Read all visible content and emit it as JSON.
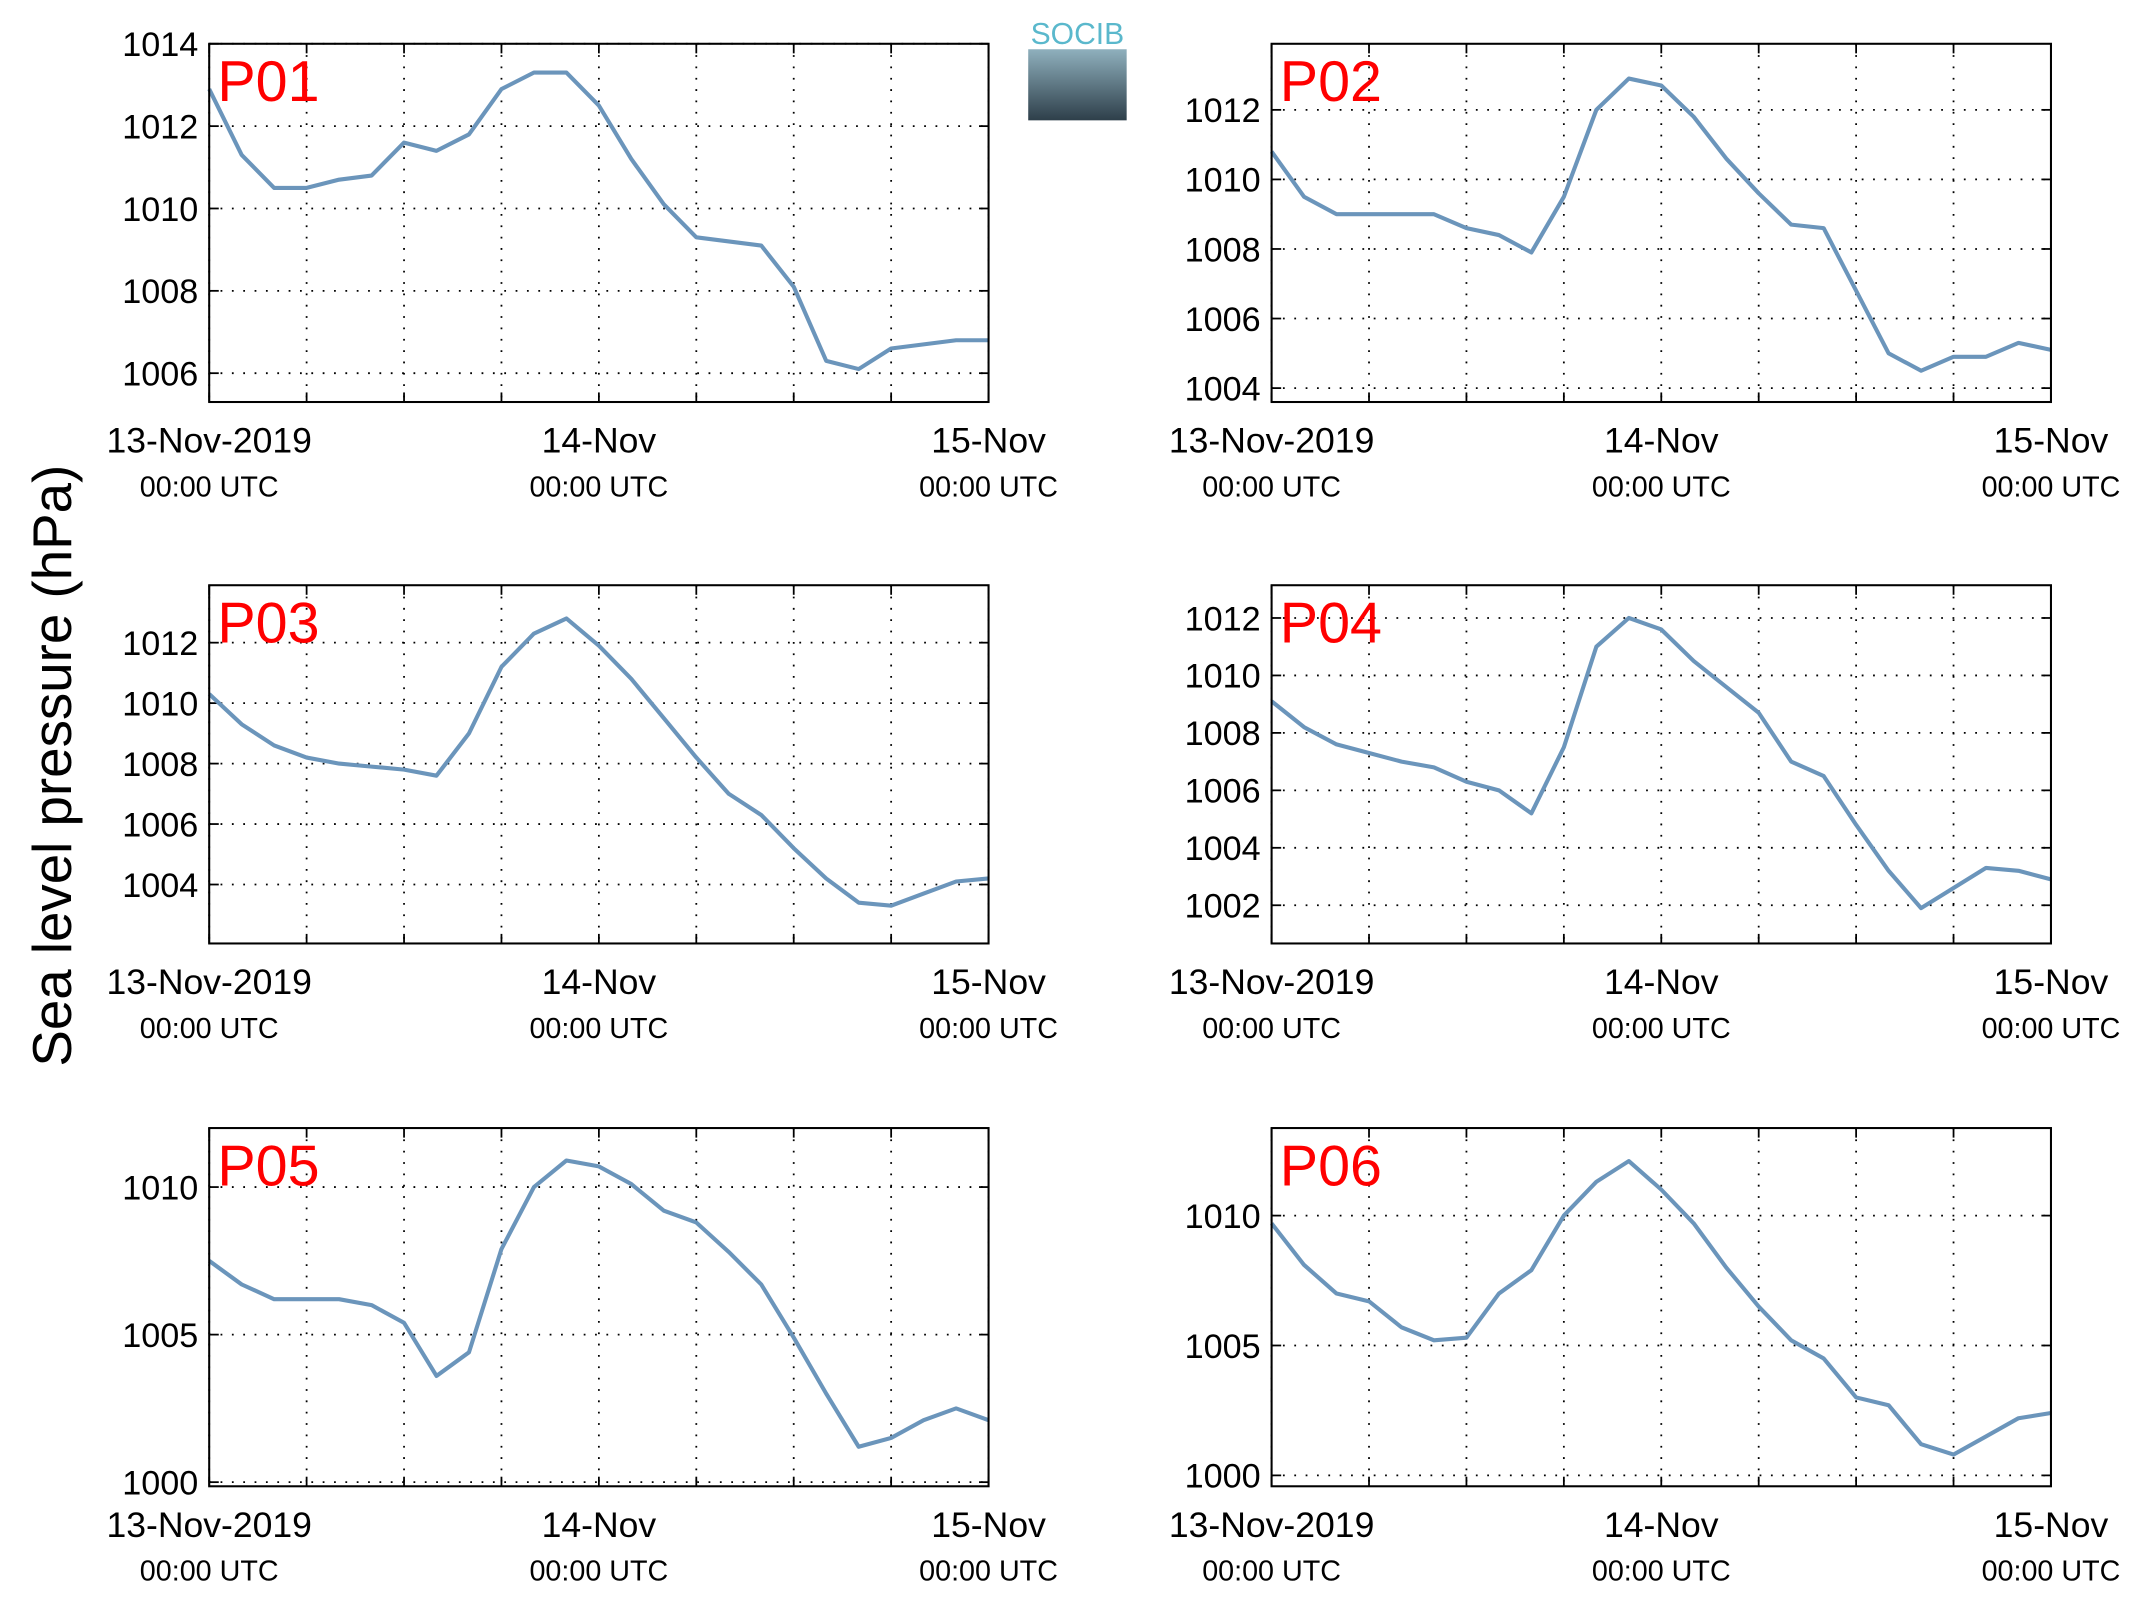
{
  "ylabel": "Sea level pressure (hPa)",
  "logo": "SOCIB",
  "chart_data": [
    {
      "type": "line",
      "title": "P01",
      "color": "#6b95bb",
      "grid": true,
      "x": [
        "2019-11-13T00:00",
        "2019-11-13T02:00",
        "2019-11-13T04:00",
        "2019-11-13T06:00",
        "2019-11-13T08:00",
        "2019-11-13T10:00",
        "2019-11-13T12:00",
        "2019-11-13T14:00",
        "2019-11-13T16:00",
        "2019-11-13T18:00",
        "2019-11-13T20:00",
        "2019-11-13T22:00",
        "2019-11-14T00:00",
        "2019-11-14T02:00",
        "2019-11-14T04:00",
        "2019-11-14T06:00",
        "2019-11-14T08:00",
        "2019-11-14T10:00",
        "2019-11-14T12:00",
        "2019-11-14T14:00",
        "2019-11-14T16:00",
        "2019-11-14T18:00",
        "2019-11-14T20:00",
        "2019-11-14T22:00",
        "2019-11-15T00:00"
      ],
      "values": [
        1012.9,
        1011.3,
        1010.5,
        1010.5,
        1010.7,
        1010.8,
        1011.6,
        1011.4,
        1011.8,
        1012.9,
        1013.3,
        1013.3,
        1012.5,
        1011.2,
        1010.1,
        1009.3,
        1009.2,
        1009.1,
        1008.1,
        1006.3,
        1006.1,
        1006.6,
        1006.7,
        1006.8,
        1006.8
      ],
      "xlim": [
        "2019-11-13T00:00",
        "2019-11-15T00:00"
      ],
      "xticks": [
        {
          "value": "2019-11-13T00:00",
          "label": [
            "13-Nov-2019",
            "00:00 UTC"
          ]
        },
        {
          "value": "2019-11-13T06:00",
          "label": null
        },
        {
          "value": "2019-11-13T12:00",
          "label": null
        },
        {
          "value": "2019-11-13T18:00",
          "label": null
        },
        {
          "value": "2019-11-14T00:00",
          "label": [
            "14-Nov",
            "00:00 UTC"
          ]
        },
        {
          "value": "2019-11-14T06:00",
          "label": null
        },
        {
          "value": "2019-11-14T12:00",
          "label": null
        },
        {
          "value": "2019-11-14T18:00",
          "label": null
        },
        {
          "value": "2019-11-15T00:00",
          "label": [
            "15-Nov",
            "00:00 UTC"
          ]
        }
      ],
      "ylim": [
        1005.3,
        1014
      ],
      "yticks": [
        1006,
        1008,
        1010,
        1012,
        1014
      ]
    },
    {
      "type": "line",
      "title": "P02",
      "color": "#6b95bb",
      "grid": true,
      "x": [
        "2019-11-13T00:00",
        "2019-11-13T02:00",
        "2019-11-13T04:00",
        "2019-11-13T06:00",
        "2019-11-13T08:00",
        "2019-11-13T10:00",
        "2019-11-13T12:00",
        "2019-11-13T14:00",
        "2019-11-13T16:00",
        "2019-11-13T18:00",
        "2019-11-13T20:00",
        "2019-11-13T22:00",
        "2019-11-14T00:00",
        "2019-11-14T02:00",
        "2019-11-14T04:00",
        "2019-11-14T06:00",
        "2019-11-14T08:00",
        "2019-11-14T10:00",
        "2019-11-14T12:00",
        "2019-11-14T14:00",
        "2019-11-14T16:00",
        "2019-11-14T18:00",
        "2019-11-14T20:00",
        "2019-11-14T22:00",
        "2019-11-15T00:00"
      ],
      "values": [
        1010.8,
        1009.5,
        1009.0,
        1009.0,
        1009.0,
        1009.0,
        1008.6,
        1008.4,
        1007.9,
        1009.5,
        1012.0,
        1012.9,
        1012.7,
        1011.8,
        1010.6,
        1009.6,
        1008.7,
        1008.6,
        1006.8,
        1005.0,
        1004.5,
        1004.9,
        1004.9,
        1005.3,
        1005.1
      ],
      "xlim": [
        "2019-11-13T00:00",
        "2019-11-15T00:00"
      ],
      "xticks": [
        {
          "value": "2019-11-13T00:00",
          "label": [
            "13-Nov-2019",
            "00:00 UTC"
          ]
        },
        {
          "value": "2019-11-13T06:00",
          "label": null
        },
        {
          "value": "2019-11-13T12:00",
          "label": null
        },
        {
          "value": "2019-11-13T18:00",
          "label": null
        },
        {
          "value": "2019-11-14T00:00",
          "label": [
            "14-Nov",
            "00:00 UTC"
          ]
        },
        {
          "value": "2019-11-14T06:00",
          "label": null
        },
        {
          "value": "2019-11-14T12:00",
          "label": null
        },
        {
          "value": "2019-11-14T18:00",
          "label": null
        },
        {
          "value": "2019-11-15T00:00",
          "label": [
            "15-Nov",
            "00:00 UTC"
          ]
        }
      ],
      "ylim": [
        1003.6,
        1013.9
      ],
      "yticks": [
        1004,
        1006,
        1008,
        1010,
        1012
      ]
    },
    {
      "type": "line",
      "title": "P03",
      "color": "#6b95bb",
      "grid": true,
      "x": [
        "2019-11-13T00:00",
        "2019-11-13T02:00",
        "2019-11-13T04:00",
        "2019-11-13T06:00",
        "2019-11-13T08:00",
        "2019-11-13T10:00",
        "2019-11-13T12:00",
        "2019-11-13T14:00",
        "2019-11-13T16:00",
        "2019-11-13T18:00",
        "2019-11-13T20:00",
        "2019-11-13T22:00",
        "2019-11-14T00:00",
        "2019-11-14T02:00",
        "2019-11-14T04:00",
        "2019-11-14T06:00",
        "2019-11-14T08:00",
        "2019-11-14T10:00",
        "2019-11-14T12:00",
        "2019-11-14T14:00",
        "2019-11-14T16:00",
        "2019-11-14T18:00",
        "2019-11-14T20:00",
        "2019-11-14T22:00",
        "2019-11-15T00:00"
      ],
      "values": [
        1010.3,
        1009.3,
        1008.6,
        1008.2,
        1008.0,
        1007.9,
        1007.8,
        1007.6,
        1009.0,
        1011.2,
        1012.3,
        1012.8,
        1011.9,
        1010.8,
        1009.5,
        1008.2,
        1007.0,
        1006.3,
        1005.2,
        1004.2,
        1003.4,
        1003.3,
        1003.7,
        1004.1,
        1004.2
      ],
      "xlim": [
        "2019-11-13T00:00",
        "2019-11-15T00:00"
      ],
      "xticks": [
        {
          "value": "2019-11-13T00:00",
          "label": [
            "13-Nov-2019",
            "00:00 UTC"
          ]
        },
        {
          "value": "2019-11-13T06:00",
          "label": null
        },
        {
          "value": "2019-11-13T12:00",
          "label": null
        },
        {
          "value": "2019-11-13T18:00",
          "label": null
        },
        {
          "value": "2019-11-14T00:00",
          "label": [
            "14-Nov",
            "00:00 UTC"
          ]
        },
        {
          "value": "2019-11-14T06:00",
          "label": null
        },
        {
          "value": "2019-11-14T12:00",
          "label": null
        },
        {
          "value": "2019-11-14T18:00",
          "label": null
        },
        {
          "value": "2019-11-15T00:00",
          "label": [
            "15-Nov",
            "00:00 UTC"
          ]
        }
      ],
      "ylim": [
        1002.05,
        1013.9
      ],
      "yticks": [
        1004,
        1006,
        1008,
        1010,
        1012
      ]
    },
    {
      "type": "line",
      "title": "P04",
      "color": "#6b95bb",
      "grid": true,
      "x": [
        "2019-11-13T00:00",
        "2019-11-13T02:00",
        "2019-11-13T04:00",
        "2019-11-13T06:00",
        "2019-11-13T08:00",
        "2019-11-13T10:00",
        "2019-11-13T12:00",
        "2019-11-13T14:00",
        "2019-11-13T16:00",
        "2019-11-13T18:00",
        "2019-11-13T20:00",
        "2019-11-13T22:00",
        "2019-11-14T00:00",
        "2019-11-14T02:00",
        "2019-11-14T04:00",
        "2019-11-14T06:00",
        "2019-11-14T08:00",
        "2019-11-14T10:00",
        "2019-11-14T12:00",
        "2019-11-14T14:00",
        "2019-11-14T16:00",
        "2019-11-14T18:00",
        "2019-11-14T20:00",
        "2019-11-14T22:00",
        "2019-11-15T00:00"
      ],
      "values": [
        1009.1,
        1008.2,
        1007.6,
        1007.3,
        1007.0,
        1006.8,
        1006.3,
        1006.0,
        1005.2,
        1007.5,
        1011.0,
        1012.0,
        1011.6,
        1010.5,
        1009.6,
        1008.7,
        1007.0,
        1006.5,
        1004.8,
        1003.2,
        1001.9,
        1002.6,
        1003.3,
        1003.2,
        1002.9
      ],
      "xlim": [
        "2019-11-13T00:00",
        "2019-11-15T00:00"
      ],
      "xticks": [
        {
          "value": "2019-11-13T00:00",
          "label": [
            "13-Nov-2019",
            "00:00 UTC"
          ]
        },
        {
          "value": "2019-11-13T06:00",
          "label": null
        },
        {
          "value": "2019-11-13T12:00",
          "label": null
        },
        {
          "value": "2019-11-13T18:00",
          "label": null
        },
        {
          "value": "2019-11-14T00:00",
          "label": [
            "14-Nov",
            "00:00 UTC"
          ]
        },
        {
          "value": "2019-11-14T06:00",
          "label": null
        },
        {
          "value": "2019-11-14T12:00",
          "label": null
        },
        {
          "value": "2019-11-14T18:00",
          "label": null
        },
        {
          "value": "2019-11-15T00:00",
          "label": [
            "15-Nov",
            "00:00 UTC"
          ]
        }
      ],
      "ylim": [
        1000.67,
        1013.14
      ],
      "yticks": [
        1002,
        1004,
        1006,
        1008,
        1010,
        1012
      ]
    },
    {
      "type": "line",
      "title": "P05",
      "color": "#6b95bb",
      "grid": true,
      "x": [
        "2019-11-13T00:00",
        "2019-11-13T02:00",
        "2019-11-13T04:00",
        "2019-11-13T06:00",
        "2019-11-13T08:00",
        "2019-11-13T10:00",
        "2019-11-13T12:00",
        "2019-11-13T14:00",
        "2019-11-13T16:00",
        "2019-11-13T18:00",
        "2019-11-13T20:00",
        "2019-11-13T22:00",
        "2019-11-14T00:00",
        "2019-11-14T02:00",
        "2019-11-14T04:00",
        "2019-11-14T06:00",
        "2019-11-14T08:00",
        "2019-11-14T10:00",
        "2019-11-14T12:00",
        "2019-11-14T14:00",
        "2019-11-14T16:00",
        "2019-11-14T18:00",
        "2019-11-14T20:00",
        "2019-11-14T22:00",
        "2019-11-15T00:00"
      ],
      "values": [
        1007.5,
        1006.7,
        1006.2,
        1006.2,
        1006.2,
        1006.0,
        1005.4,
        1003.6,
        1004.4,
        1007.9,
        1010.0,
        1010.9,
        1010.7,
        1010.1,
        1009.2,
        1008.8,
        1007.8,
        1006.7,
        1004.9,
        1003.0,
        1001.2,
        1001.5,
        1002.1,
        1002.5,
        1002.1
      ],
      "xlim": [
        "2019-11-13T00:00",
        "2019-11-15T00:00"
      ],
      "xticks": [
        {
          "value": "2019-11-13T00:00",
          "label": [
            "13-Nov-2019",
            "00:00 UTC"
          ]
        },
        {
          "value": "2019-11-13T06:00",
          "label": null
        },
        {
          "value": "2019-11-13T12:00",
          "label": null
        },
        {
          "value": "2019-11-13T18:00",
          "label": null
        },
        {
          "value": "2019-11-14T00:00",
          "label": [
            "14-Nov",
            "00:00 UTC"
          ]
        },
        {
          "value": "2019-11-14T06:00",
          "label": null
        },
        {
          "value": "2019-11-14T12:00",
          "label": null
        },
        {
          "value": "2019-11-14T18:00",
          "label": null
        },
        {
          "value": "2019-11-15T00:00",
          "label": [
            "15-Nov",
            "00:00 UTC"
          ]
        }
      ],
      "ylim": [
        999.86,
        1012
      ],
      "yticks": [
        1000,
        1005,
        1010
      ]
    },
    {
      "type": "line",
      "title": "P06",
      "color": "#6b95bb",
      "grid": true,
      "x": [
        "2019-11-13T00:00",
        "2019-11-13T02:00",
        "2019-11-13T04:00",
        "2019-11-13T06:00",
        "2019-11-13T08:00",
        "2019-11-13T10:00",
        "2019-11-13T12:00",
        "2019-11-13T14:00",
        "2019-11-13T16:00",
        "2019-11-13T18:00",
        "2019-11-13T20:00",
        "2019-11-13T22:00",
        "2019-11-14T00:00",
        "2019-11-14T02:00",
        "2019-11-14T04:00",
        "2019-11-14T06:00",
        "2019-11-14T08:00",
        "2019-11-14T10:00",
        "2019-11-14T12:00",
        "2019-11-14T14:00",
        "2019-11-14T16:00",
        "2019-11-14T18:00",
        "2019-11-14T20:00",
        "2019-11-14T22:00",
        "2019-11-15T00:00"
      ],
      "values": [
        1009.7,
        1008.1,
        1007.0,
        1006.7,
        1005.7,
        1005.2,
        1005.3,
        1007.0,
        1007.9,
        1010.0,
        1011.3,
        1012.1,
        1011.0,
        1009.7,
        1008.0,
        1006.5,
        1005.2,
        1004.5,
        1003.0,
        1002.7,
        1001.2,
        1000.8,
        1001.5,
        1002.2,
        1002.4
      ],
      "xlim": [
        "2019-11-13T00:00",
        "2019-11-15T00:00"
      ],
      "xticks": [
        {
          "value": "2019-11-13T00:00",
          "label": [
            "13-Nov-2019",
            "00:00 UTC"
          ]
        },
        {
          "value": "2019-11-13T06:00",
          "label": null
        },
        {
          "value": "2019-11-13T12:00",
          "label": null
        },
        {
          "value": "2019-11-13T18:00",
          "label": null
        },
        {
          "value": "2019-11-14T00:00",
          "label": [
            "14-Nov",
            "00:00 UTC"
          ]
        },
        {
          "value": "2019-11-14T06:00",
          "label": null
        },
        {
          "value": "2019-11-14T12:00",
          "label": null
        },
        {
          "value": "2019-11-14T18:00",
          "label": null
        },
        {
          "value": "2019-11-15T00:00",
          "label": [
            "15-Nov",
            "00:00 UTC"
          ]
        }
      ],
      "ylim": [
        999.58,
        1013.37
      ],
      "yticks": [
        1000,
        1005,
        1010
      ]
    }
  ]
}
